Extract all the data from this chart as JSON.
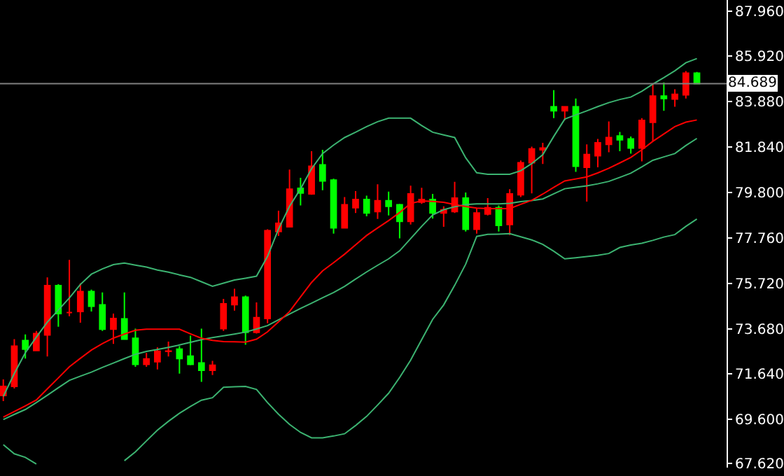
{
  "chart_data": {
    "type": "candlestick",
    "tick_labels": "y",
    "grid": false,
    "categories": [
      null,
      null,
      null,
      null,
      null,
      null,
      null,
      null,
      null,
      null,
      null,
      null,
      null,
      null,
      null,
      null,
      null,
      null,
      null,
      null,
      null,
      null,
      null,
      null,
      null,
      null,
      null,
      null,
      null,
      null,
      null,
      null,
      null,
      null,
      null,
      null,
      null,
      null,
      null,
      null,
      null,
      null,
      null,
      null,
      null,
      null,
      null,
      null,
      null,
      null,
      null,
      null,
      null,
      null,
      null,
      null,
      null,
      null,
      null,
      null,
      null,
      null,
      null,
      null
    ],
    "colors": [
      "#ff0000",
      "#ff0000",
      "#00ff00",
      "#ff0000",
      "#ff0000",
      "#00ff00",
      "#ff0000",
      "#ff0000",
      "#00ff00",
      "#00ff00",
      "#ff0000",
      "#00ff00",
      "#00ff00",
      "#ff0000",
      "#ff0000",
      "#ff0000",
      "#00ff00",
      "#00ff00",
      "#00ff00",
      "#ff0000",
      "#ff0000",
      "#ff0000",
      "#00ff00",
      "#ff0000",
      "#ff0000",
      "#ff0000",
      "#ff0000",
      "#00ff00",
      "#ff0000",
      "#00ff00",
      "#00ff00",
      "#ff0000",
      "#ff0000",
      "#00ff00",
      "#ff0000",
      "#00ff00",
      "#00ff00",
      "#ff0000",
      "#ff0000",
      "#00ff00",
      "#ff0000",
      "#ff0000",
      "#00ff00",
      "#ff0000",
      "#ff0000",
      "#00ff00",
      "#ff0000",
      "#ff0000",
      "#ff0000",
      "#ff0000",
      "#00ff00",
      "#ff0000",
      "#00ff00",
      "#ff0000",
      "#ff0000",
      "#ff0000",
      "#00ff00",
      "#00ff00",
      "#ff0000",
      "#ff0000",
      "#00ff00",
      "#ff0000",
      "#ff0000",
      "#00ff00"
    ],
    "ohlc": [
      [
        70.68,
        71.4,
        70.43,
        71.09
      ],
      [
        71.09,
        73.21,
        70.99,
        72.9
      ],
      [
        73.15,
        73.42,
        72.34,
        72.76
      ],
      [
        72.7,
        73.58,
        72.7,
        73.46
      ],
      [
        73.4,
        75.99,
        72.43,
        75.62
      ],
      [
        75.62,
        75.68,
        73.77,
        74.36
      ],
      [
        74.41,
        76.77,
        74.24,
        74.41
      ],
      [
        74.45,
        75.72,
        73.95,
        75.35
      ],
      [
        75.35,
        75.44,
        74.45,
        74.69
      ],
      [
        74.75,
        75.31,
        73.58,
        73.66
      ],
      [
        73.66,
        74.36,
        73.0,
        74.14
      ],
      [
        74.12,
        75.31,
        73.21,
        73.21
      ],
      [
        73.25,
        73.68,
        71.97,
        72.08
      ],
      [
        72.08,
        72.59,
        71.97,
        72.32
      ],
      [
        72.2,
        72.84,
        71.85,
        72.67
      ],
      [
        72.66,
        73.1,
        72.43,
        72.68
      ],
      [
        72.76,
        72.9,
        71.66,
        72.34
      ],
      [
        72.45,
        73.37,
        72.04,
        72.08
      ],
      [
        72.14,
        73.68,
        71.29,
        71.81
      ],
      [
        71.81,
        72.24,
        71.6,
        72.04
      ],
      [
        73.68,
        75.02,
        73.58,
        74.8
      ],
      [
        74.76,
        75.48,
        74.49,
        75.1
      ],
      [
        75.1,
        75.17,
        72.96,
        73.52
      ],
      [
        73.52,
        74.86,
        73.46,
        74.18
      ],
      [
        74.14,
        78.15,
        73.93,
        78.09
      ],
      [
        78.05,
        78.98,
        77.85,
        78.42
      ],
      [
        78.26,
        80.83,
        78.26,
        79.95
      ],
      [
        79.99,
        80.46,
        79.22,
        79.78
      ],
      [
        79.74,
        81.66,
        79.7,
        80.98
      ],
      [
        81.04,
        81.72,
        79.9,
        80.32
      ],
      [
        80.36,
        80.42,
        77.95,
        78.21
      ],
      [
        78.21,
        79.6,
        78.21,
        79.25
      ],
      [
        79.12,
        79.86,
        78.88,
        79.49
      ],
      [
        79.49,
        79.66,
        78.73,
        78.88
      ],
      [
        78.94,
        80.17,
        78.61,
        79.43
      ],
      [
        79.43,
        79.84,
        78.77,
        79.18
      ],
      [
        79.25,
        79.29,
        77.74,
        78.5
      ],
      [
        78.5,
        80.11,
        78.36,
        79.74
      ],
      [
        79.37,
        80.01,
        79.29,
        79.49
      ],
      [
        79.49,
        79.74,
        78.63,
        78.88
      ],
      [
        78.88,
        79.18,
        78.26,
        79.02
      ],
      [
        78.94,
        80.28,
        78.88,
        79.55
      ],
      [
        79.55,
        79.8,
        78.05,
        78.15
      ],
      [
        78.15,
        79.08,
        77.95,
        78.88
      ],
      [
        78.83,
        79.55,
        78.77,
        79.12
      ],
      [
        79.12,
        79.22,
        78.05,
        78.32
      ],
      [
        78.36,
        79.95,
        77.89,
        79.74
      ],
      [
        79.7,
        81.24,
        79.6,
        81.14
      ],
      [
        81.14,
        81.86,
        79.76,
        81.76
      ],
      [
        81.72,
        82.03,
        81.08,
        81.8
      ],
      [
        83.65,
        84.4,
        83.14,
        83.47
      ],
      [
        83.47,
        83.67,
        83.06,
        83.65
      ],
      [
        83.65,
        84.02,
        80.73,
        80.98
      ],
      [
        80.93,
        81.96,
        79.39,
        81.51
      ],
      [
        81.45,
        82.21,
        80.93,
        82.03
      ],
      [
        81.96,
        82.99,
        81.61,
        82.27
      ],
      [
        82.34,
        82.52,
        81.66,
        82.17
      ],
      [
        82.21,
        82.32,
        81.55,
        81.8
      ],
      [
        81.8,
        83.14,
        81.2,
        83.04
      ],
      [
        82.95,
        84.68,
        82.11,
        84.13
      ],
      [
        84.13,
        84.75,
        83.47,
        84.02
      ],
      [
        84.0,
        84.44,
        83.65,
        84.21
      ],
      [
        84.19,
        85.26,
        84.02,
        85.16
      ],
      [
        85.16,
        85.22,
        84.69,
        84.69
      ]
    ],
    "series": [
      {
        "type": "line",
        "color": "#3cb371",
        "values": [
          70.64,
          71.67,
          72.6,
          73.3,
          73.98,
          74.52,
          75.06,
          75.67,
          76.13,
          76.37,
          76.56,
          76.63,
          76.54,
          76.45,
          76.32,
          76.22,
          76.1,
          75.99,
          75.79,
          75.59,
          75.73,
          75.87,
          75.95,
          76.04,
          76.93,
          78.16,
          79.18,
          79.97,
          80.87,
          81.55,
          81.93,
          82.27,
          82.51,
          82.76,
          82.98,
          83.14,
          83.14,
          83.14,
          82.81,
          82.51,
          82.39,
          82.27,
          81.36,
          80.69,
          80.62,
          80.62,
          80.62,
          80.78,
          81.1,
          81.5,
          82.32,
          83.1,
          83.29,
          83.47,
          83.66,
          83.84,
          83.98,
          84.09,
          84.35,
          84.67,
          84.96,
          85.27,
          85.63,
          85.82
        ]
      },
      {
        "type": "line",
        "color": "#3cb371",
        "values": [
          68.47,
          68.06,
          67.9,
          67.6,
          null,
          null,
          null,
          null,
          null,
          null,
          null,
          67.75,
          68.15,
          68.64,
          69.12,
          69.52,
          69.88,
          70.19,
          70.47,
          70.58,
          71.05,
          71.07,
          71.09,
          70.95,
          70.36,
          69.84,
          69.38,
          69.02,
          68.78,
          68.78,
          68.86,
          68.96,
          69.33,
          69.74,
          70.25,
          70.78,
          71.49,
          72.27,
          73.19,
          74.1,
          74.75,
          75.63,
          76.58,
          77.83,
          77.92,
          77.93,
          77.95,
          77.81,
          77.67,
          77.47,
          77.16,
          76.82,
          76.87,
          76.92,
          76.98,
          77.06,
          77.33,
          77.44,
          77.52,
          77.65,
          77.8,
          77.91,
          78.28,
          78.61
        ]
      },
      {
        "type": "line",
        "color": "#3cb371",
        "values": [
          69.6,
          69.83,
          70.05,
          70.36,
          70.69,
          71.03,
          71.36,
          71.55,
          71.73,
          71.94,
          72.14,
          72.34,
          72.53,
          72.66,
          72.75,
          72.84,
          72.95,
          73.07,
          73.19,
          73.28,
          73.36,
          73.44,
          73.53,
          73.67,
          73.82,
          74.08,
          74.34,
          74.59,
          74.83,
          75.07,
          75.31,
          75.58,
          75.91,
          76.23,
          76.53,
          76.82,
          77.18,
          77.73,
          78.28,
          78.79,
          79.03,
          79.16,
          79.26,
          79.29,
          79.29,
          79.29,
          79.31,
          79.39,
          79.44,
          79.51,
          79.74,
          79.97,
          80.04,
          80.1,
          80.19,
          80.3,
          80.48,
          80.67,
          80.95,
          81.25,
          81.4,
          81.55,
          81.91,
          82.23
        ]
      },
      {
        "type": "line",
        "color": "#ff0000",
        "values": [
          69.71,
          69.96,
          70.21,
          70.48,
          70.98,
          71.47,
          71.97,
          72.35,
          72.72,
          73.01,
          73.26,
          73.44,
          73.61,
          73.66,
          73.66,
          73.66,
          73.66,
          73.45,
          73.25,
          73.16,
          73.1,
          73.09,
          73.08,
          73.21,
          73.54,
          73.99,
          74.45,
          75.11,
          75.76,
          76.28,
          76.65,
          77.03,
          77.45,
          77.87,
          78.21,
          78.54,
          78.9,
          79.31,
          79.42,
          79.4,
          79.36,
          79.26,
          79.17,
          79.1,
          79.08,
          79.08,
          79.08,
          79.27,
          79.45,
          79.73,
          80.03,
          80.32,
          80.41,
          80.5,
          80.68,
          80.89,
          81.13,
          81.38,
          81.72,
          82.1,
          82.43,
          82.76,
          82.96,
          83.06
        ]
      }
    ],
    "ref_lines": [
      {
        "axis": "y",
        "value": 84.689,
        "label": "84.689",
        "color": "#808080"
      }
    ],
    "ylim": [
      67.44,
      88.45
    ],
    "yticks": [
      {
        "value": 87.96,
        "label": "87.960"
      },
      {
        "value": 85.92,
        "label": "85.920"
      },
      {
        "value": 83.88,
        "label": "83.880"
      },
      {
        "value": 81.84,
        "label": "81.840"
      },
      {
        "value": 79.8,
        "label": "79.800"
      },
      {
        "value": 77.76,
        "label": "77.760"
      },
      {
        "value": 75.72,
        "label": "75.720"
      },
      {
        "value": 73.68,
        "label": "73.680"
      },
      {
        "value": 71.64,
        "label": "71.640"
      },
      {
        "value": 69.6,
        "label": "69.600"
      },
      {
        "value": 67.62,
        "label": "67.620"
      }
    ]
  }
}
